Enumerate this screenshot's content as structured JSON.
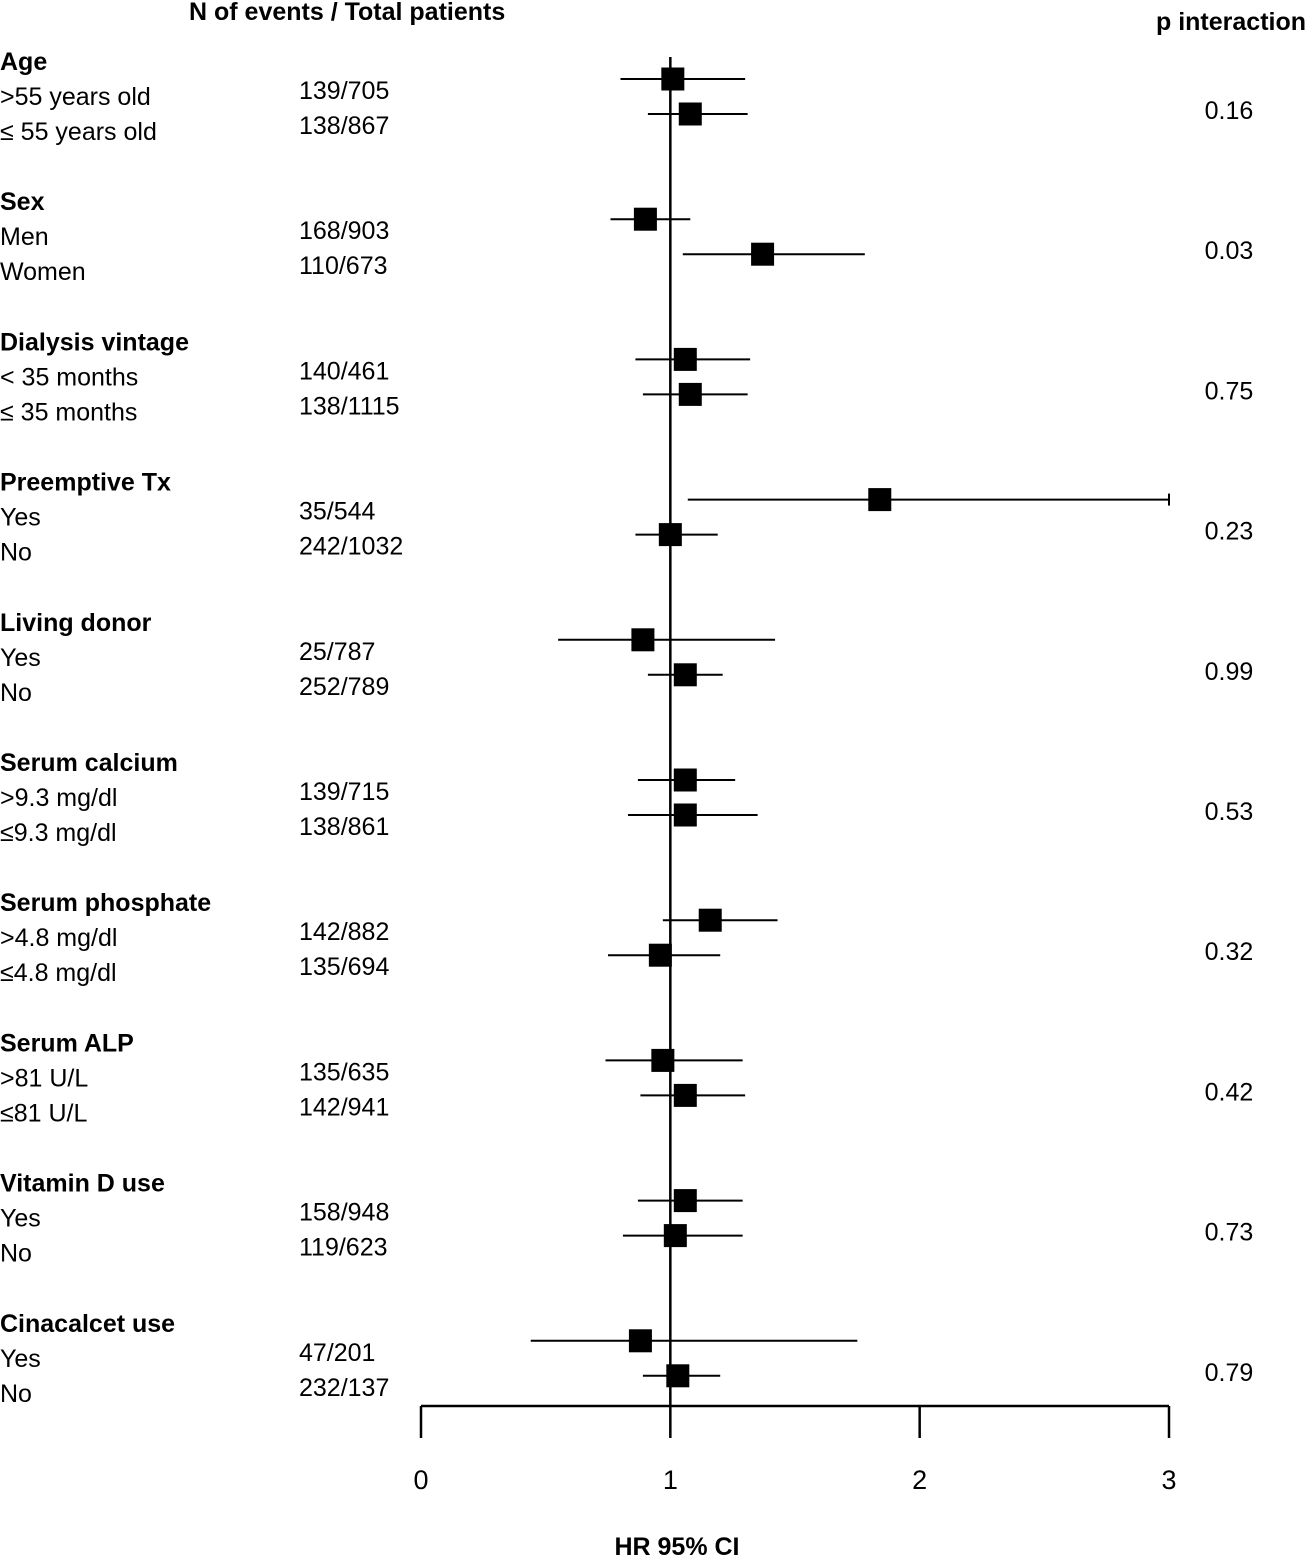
{
  "headers": {
    "events": "N of events / Total patients",
    "p": "p interaction"
  },
  "axis": {
    "xlabel": "HR 95% CI",
    "ticks": [
      "0",
      "1",
      "2",
      "3"
    ]
  },
  "chart_data": {
    "type": "forest",
    "xlabel": "HR 95% CI",
    "xlim": [
      0,
      3
    ],
    "reference_line": 1,
    "groups": [
      {
        "label": "Age",
        "p": "0.16",
        "rows": [
          {
            "label": ">55 years old",
            "n": "139/705",
            "hr": 1.01,
            "lo": 0.8,
            "hi": 1.3
          },
          {
            "label": "≤ 55 years old",
            "n": "138/867",
            "hr": 1.08,
            "lo": 0.91,
            "hi": 1.31
          }
        ]
      },
      {
        "label": "Sex",
        "p": "0.03",
        "rows": [
          {
            "label": "Men",
            "n": "168/903",
            "hr": 0.9,
            "lo": 0.76,
            "hi": 1.08
          },
          {
            "label": "Women",
            "n": "110/673",
            "hr": 1.37,
            "lo": 1.05,
            "hi": 1.78
          }
        ]
      },
      {
        "label": "Dialysis vintage",
        "p": "0.75",
        "rows": [
          {
            "label": "< 35 months",
            "n": "140/461",
            "hr": 1.06,
            "lo": 0.86,
            "hi": 1.32
          },
          {
            "label": "≤ 35 months",
            "n": "138/1115",
            "hr": 1.08,
            "lo": 0.89,
            "hi": 1.31
          }
        ]
      },
      {
        "label": "Preemptive Tx",
        "p": "0.23",
        "rows": [
          {
            "label": "Yes",
            "n": "35/544",
            "hr": 1.84,
            "lo": 1.07,
            "hi": 3.0
          },
          {
            "label": "No",
            "n": "242/1032",
            "hr": 1.0,
            "lo": 0.86,
            "hi": 1.19
          }
        ]
      },
      {
        "label": "Living donor",
        "p": "0.99",
        "rows": [
          {
            "label": "Yes",
            "n": "25/787",
            "hr": 0.89,
            "lo": 0.55,
            "hi": 1.42
          },
          {
            "label": "No",
            "n": "252/789",
            "hr": 1.06,
            "lo": 0.91,
            "hi": 1.21
          }
        ]
      },
      {
        "label": "Serum calcium",
        "p": "0.53",
        "rows": [
          {
            "label": ">9.3 mg/dl",
            "n": "139/715",
            "hr": 1.06,
            "lo": 0.87,
            "hi": 1.26
          },
          {
            "label": "≤9.3 mg/dl",
            "n": "138/861",
            "hr": 1.06,
            "lo": 0.83,
            "hi": 1.35
          }
        ]
      },
      {
        "label": "Serum phosphate",
        "p": "0.32",
        "rows": [
          {
            "label": ">4.8 mg/dl",
            "n": "142/882",
            "hr": 1.16,
            "lo": 0.97,
            "hi": 1.43
          },
          {
            "label": "≤4.8 mg/dl",
            "n": "135/694",
            "hr": 0.96,
            "lo": 0.75,
            "hi": 1.2
          }
        ]
      },
      {
        "label": "Serum ALP",
        "p": "0.42",
        "rows": [
          {
            "label": ">81 U/L",
            "n": "135/635",
            "hr": 0.97,
            "lo": 0.74,
            "hi": 1.29
          },
          {
            "label": "≤81 U/L",
            "n": "142/941",
            "hr": 1.06,
            "lo": 0.88,
            "hi": 1.3
          }
        ]
      },
      {
        "label": "Vitamin D use",
        "p": "0.73",
        "rows": [
          {
            "label": "Yes",
            "n": "158/948",
            "hr": 1.06,
            "lo": 0.87,
            "hi": 1.29
          },
          {
            "label": "No",
            "n": "119/623",
            "hr": 1.02,
            "lo": 0.81,
            "hi": 1.29
          }
        ]
      },
      {
        "label": "Cinacalcet use",
        "p": "0.79",
        "rows": [
          {
            "label": "Yes",
            "n": "47/201",
            "hr": 0.88,
            "lo": 0.44,
            "hi": 1.75
          },
          {
            "label": "No",
            "n": "232/137",
            "hr": 1.03,
            "lo": 0.89,
            "hi": 1.2
          }
        ]
      }
    ]
  }
}
